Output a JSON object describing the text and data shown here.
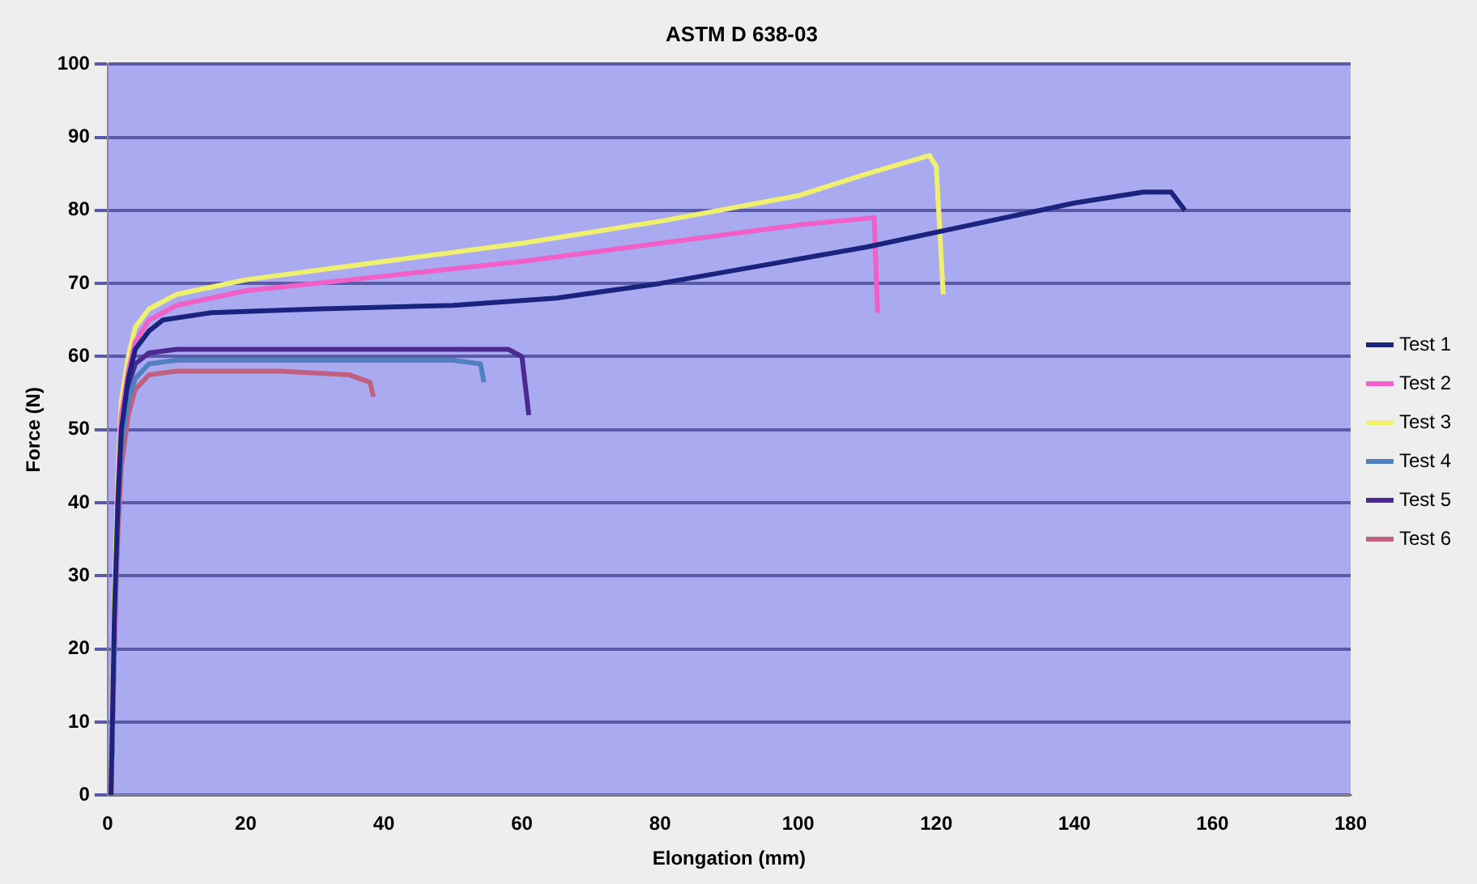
{
  "chart_data": {
    "type": "line",
    "title": "ASTM D 638-03",
    "xlabel": "Elongation (mm)",
    "ylabel": "Force (N)",
    "xlim": [
      0,
      180
    ],
    "xticks": [
      0,
      20,
      40,
      60,
      80,
      100,
      120,
      140,
      160,
      180
    ],
    "ylim": [
      0,
      100
    ],
    "yticks": [
      0,
      10,
      20,
      30,
      40,
      50,
      60,
      70,
      80,
      90,
      100
    ],
    "grid": "y",
    "legend": "right",
    "marker": "none",
    "line_style": "solid",
    "series": [
      {
        "name": "Test 1",
        "color": "#1a237e",
        "x": [
          0.5,
          1,
          1.5,
          2,
          3,
          4,
          6,
          8,
          15,
          30,
          50,
          65,
          80,
          95,
          110,
          125,
          140,
          150,
          154,
          156
        ],
        "values": [
          0,
          25,
          40,
          50,
          57,
          61,
          63.5,
          65,
          66,
          66.5,
          67,
          68,
          70,
          72.5,
          75,
          78,
          81,
          82.5,
          82.5,
          80
        ]
      },
      {
        "name": "Test 2",
        "color": "#f060c8",
        "x": [
          0.5,
          1.5,
          2,
          3,
          4,
          6,
          10,
          20,
          40,
          60,
          80,
          100,
          111,
          111.5
        ],
        "values": [
          0,
          42,
          52,
          58,
          62,
          65,
          67,
          69,
          71,
          73,
          75.5,
          78,
          79,
          66
        ]
      },
      {
        "name": "Test 3",
        "color": "#f0f070",
        "x": [
          0.5,
          1,
          1.5,
          2,
          3,
          4,
          6,
          10,
          20,
          40,
          60,
          80,
          100,
          110,
          119,
          120,
          121
        ],
        "values": [
          0,
          28,
          44,
          54,
          60,
          64,
          66.5,
          68.5,
          70.5,
          73,
          75.5,
          78.5,
          82,
          85,
          87.5,
          86,
          68.5
        ]
      },
      {
        "name": "Test 4",
        "color": "#5080c0",
        "x": [
          0.5,
          1.5,
          2,
          3,
          4,
          6,
          10,
          30,
          50,
          54,
          54.5
        ],
        "values": [
          0,
          40,
          48,
          54,
          57,
          59,
          59.5,
          59.5,
          59.5,
          59,
          56.5
        ]
      },
      {
        "name": "Test 5",
        "color": "#4a2a90",
        "x": [
          0.5,
          1,
          1.5,
          2,
          3,
          4,
          6,
          10,
          30,
          50,
          58,
          60,
          61
        ],
        "values": [
          0,
          25,
          40,
          50,
          56,
          59,
          60.5,
          61,
          61,
          61,
          61,
          60,
          52
        ]
      },
      {
        "name": "Test 6",
        "color": "#c06080",
        "x": [
          0.5,
          1,
          1.5,
          2,
          3,
          4,
          6,
          10,
          25,
          35,
          38,
          38.5
        ],
        "values": [
          0,
          22,
          36,
          45,
          52,
          55.5,
          57.5,
          58,
          58,
          57.5,
          56.5,
          54.5
        ]
      }
    ]
  }
}
